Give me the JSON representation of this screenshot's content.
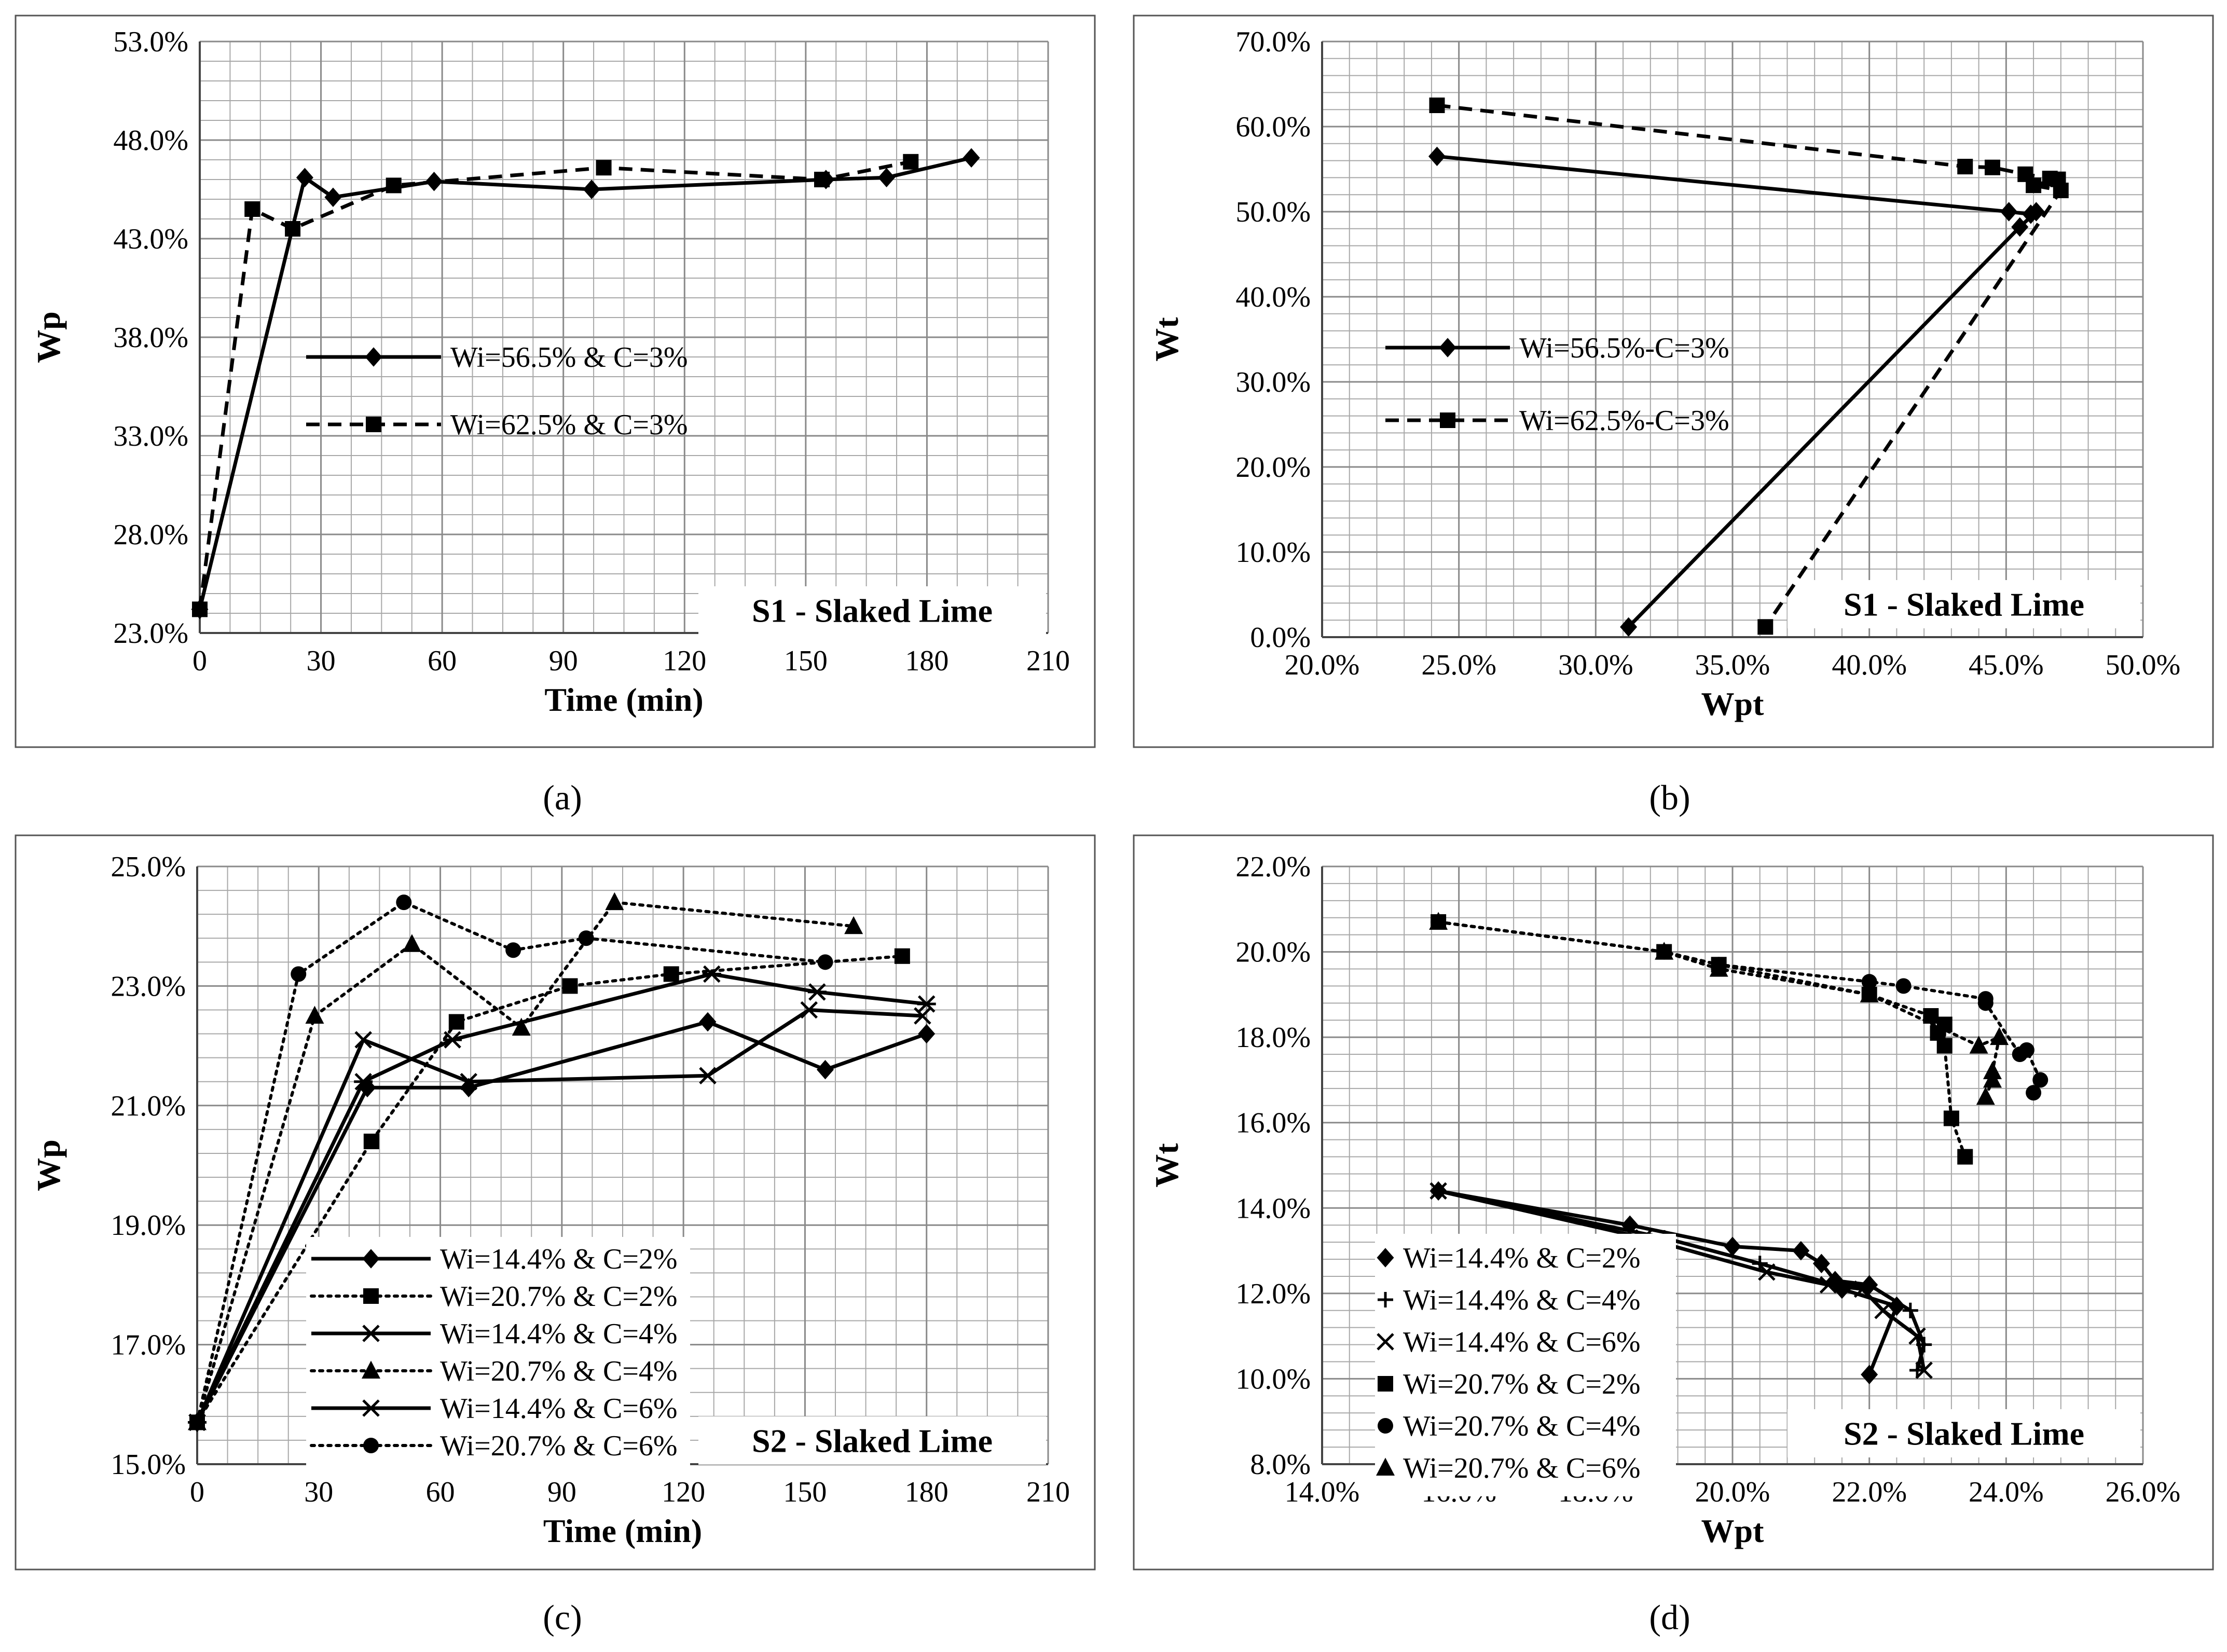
{
  "captions": [
    "(a)",
    "(b)",
    "(c)",
    "(d)"
  ],
  "chart_data": [
    {
      "id": "a",
      "type": "line",
      "title": "",
      "xlabel": "Time (min)",
      "ylabel": "Wp",
      "xlim": [
        0,
        210
      ],
      "ylim": [
        0.23,
        0.53
      ],
      "xticks": [
        0,
        30,
        60,
        90,
        120,
        150,
        180,
        210
      ],
      "yticks": [
        0.23,
        0.28,
        0.33,
        0.38,
        0.43,
        0.48,
        0.53
      ],
      "xtick_labels": [
        "0",
        "30",
        "60",
        "90",
        "120",
        "150",
        "180",
        "210"
      ],
      "ytick_labels": [
        "23.0%",
        "28.0%",
        "33.0%",
        "38.0%",
        "43.0%",
        "48.0%",
        "53.0%"
      ],
      "x_minor": 7.5,
      "y_minor": 0.01,
      "grid": true,
      "legend_position": "center-left",
      "tag": "S1 - Slaked Lime",
      "series": [
        {
          "name": "Wi=56.5% & C=3%",
          "marker": "diamond",
          "style": "solid",
          "x": [
            0,
            26,
            33,
            58,
            97,
            155,
            170,
            191
          ],
          "y": [
            0.242,
            0.461,
            0.451,
            0.459,
            0.455,
            0.46,
            0.461,
            0.471
          ]
        },
        {
          "name": "Wi=62.5% & C=3%",
          "marker": "square",
          "style": "dashed",
          "x": [
            0,
            13,
            23,
            48,
            100,
            154,
            176
          ],
          "y": [
            0.242,
            0.445,
            0.435,
            0.457,
            0.466,
            0.46,
            0.469
          ]
        }
      ]
    },
    {
      "id": "b",
      "type": "line",
      "title": "",
      "xlabel": "Wpt",
      "ylabel": "Wt",
      "xlim": [
        0.2,
        0.5
      ],
      "ylim": [
        0.0,
        0.7
      ],
      "xticks": [
        0.2,
        0.25,
        0.3,
        0.35,
        0.4,
        0.45,
        0.5
      ],
      "yticks": [
        0.0,
        0.1,
        0.2,
        0.3,
        0.4,
        0.5,
        0.6,
        0.7
      ],
      "xtick_labels": [
        "20.0%",
        "25.0%",
        "30.0%",
        "35.0%",
        "40.0%",
        "45.0%",
        "50.0%"
      ],
      "ytick_labels": [
        "0.0%",
        "10.0%",
        "20.0%",
        "30.0%",
        "40.0%",
        "50.0%",
        "60.0%",
        "70.0%"
      ],
      "x_minor": 0.01,
      "y_minor": 0.02,
      "grid": true,
      "legend_position": "center-left",
      "tag": "S1 - Slaked Lime",
      "series": [
        {
          "name": "Wi=56.5%-C=3%",
          "marker": "diamond",
          "style": "solid",
          "x": [
            0.242,
            0.451,
            0.459,
            0.461,
            0.455,
            0.312
          ],
          "y": [
            0.565,
            0.5,
            0.497,
            0.5,
            0.482,
            0.012
          ]
        },
        {
          "name": "Wi=62.5%-C=3%",
          "marker": "square",
          "style": "dashed",
          "x": [
            0.242,
            0.435,
            0.445,
            0.457,
            0.466,
            0.469,
            0.46,
            0.47,
            0.362
          ],
          "y": [
            0.625,
            0.553,
            0.552,
            0.544,
            0.539,
            0.538,
            0.531,
            0.525,
            0.012
          ]
        }
      ]
    },
    {
      "id": "c",
      "type": "line",
      "title": "",
      "xlabel": "Time (min)",
      "ylabel": "Wp",
      "xlim": [
        0,
        210
      ],
      "ylim": [
        0.15,
        0.25
      ],
      "xticks": [
        0,
        30,
        60,
        90,
        120,
        150,
        180,
        210
      ],
      "yticks": [
        0.15,
        0.17,
        0.19,
        0.21,
        0.23,
        0.25
      ],
      "xtick_labels": [
        "0",
        "30",
        "60",
        "90",
        "120",
        "150",
        "180",
        "210"
      ],
      "ytick_labels": [
        "15.0%",
        "17.0%",
        "19.0%",
        "21.0%",
        "23.0%",
        "25.0%"
      ],
      "x_minor": 7.5,
      "y_minor": 0.004,
      "grid": true,
      "legend_position": "bottom-left",
      "tag": "S2 - Slaked Lime",
      "series": [
        {
          "name": "Wi=14.4% & C=2%",
          "marker": "diamond",
          "style": "solid",
          "x": [
            0,
            42,
            67,
            126,
            155,
            180
          ],
          "y": [
            0.157,
            0.213,
            0.213,
            0.224,
            0.216,
            0.222
          ]
        },
        {
          "name": "Wi=20.7% & C=2%",
          "marker": "square",
          "style": "dotted",
          "x": [
            0,
            43,
            64,
            92,
            117,
            174
          ],
          "y": [
            0.157,
            0.204,
            0.224,
            0.23,
            0.232,
            0.235
          ]
        },
        {
          "name": "Wi=14.4% & C=4%",
          "marker": "x",
          "style": "solid",
          "x": [
            0,
            41,
            67,
            126,
            151,
            179
          ],
          "y": [
            0.157,
            0.221,
            0.214,
            0.215,
            0.226,
            0.225
          ]
        },
        {
          "name": "Wi=20.7% & C=4%",
          "marker": "triangle",
          "style": "dotted",
          "x": [
            0,
            29,
            53,
            80,
            103,
            162
          ],
          "y": [
            0.157,
            0.225,
            0.237,
            0.223,
            0.244,
            0.24
          ]
        },
        {
          "name": "Wi=14.4% & C=6%",
          "marker": "star",
          "style": "solid",
          "x": [
            0,
            41,
            63,
            127,
            153,
            180
          ],
          "y": [
            0.157,
            0.214,
            0.221,
            0.232,
            0.229,
            0.227
          ]
        },
        {
          "name": "Wi=20.7% & C=6%",
          "marker": "circle",
          "style": "dotted",
          "x": [
            0,
            25,
            51,
            78,
            96,
            155
          ],
          "y": [
            0.157,
            0.232,
            0.244,
            0.236,
            0.238,
            0.234
          ]
        }
      ]
    },
    {
      "id": "d",
      "type": "line",
      "title": "",
      "xlabel": "Wpt",
      "ylabel": "Wt",
      "xlim": [
        0.14,
        0.26
      ],
      "ylim": [
        0.08,
        0.22
      ],
      "xticks": [
        0.14,
        0.16,
        0.18,
        0.2,
        0.22,
        0.24,
        0.26
      ],
      "yticks": [
        0.08,
        0.1,
        0.12,
        0.14,
        0.16,
        0.18,
        0.2,
        0.22
      ],
      "xtick_labels": [
        "14.0%",
        "16.0%",
        "18.0%",
        "20.0%",
        "22.0%",
        "24.0%",
        "26.0%"
      ],
      "ytick_labels": [
        "8.0%",
        "10.0%",
        "12.0%",
        "14.0%",
        "16.0%",
        "18.0%",
        "20.0%",
        "22.0%"
      ],
      "x_minor": 0.004,
      "y_minor": 0.004,
      "grid": true,
      "legend_position": "bottom-left",
      "tag": "S2 - Slaked Lime",
      "series": [
        {
          "name": "Wi=14.4% & C=2%",
          "marker": "diamond",
          "style": "solid",
          "x": [
            0.157,
            0.185,
            0.2,
            0.21,
            0.213,
            0.215,
            0.22,
            0.216,
            0.224,
            0.22
          ],
          "y": [
            0.144,
            0.136,
            0.131,
            0.13,
            0.127,
            0.123,
            0.122,
            0.121,
            0.117,
            0.101
          ]
        },
        {
          "name": "Wi=14.4% & C=4%",
          "marker": "plus",
          "style": "solid",
          "x": [
            0.157,
            0.19,
            0.204,
            0.215,
            0.22,
            0.226,
            0.228,
            0.227
          ],
          "y": [
            0.144,
            0.133,
            0.127,
            0.122,
            0.122,
            0.116,
            0.108,
            0.102
          ]
        },
        {
          "name": "Wi=14.4% & C=6%",
          "marker": "x",
          "style": "solid",
          "x": [
            0.157,
            0.187,
            0.205,
            0.214,
            0.219,
            0.222,
            0.227,
            0.228
          ],
          "y": [
            0.144,
            0.133,
            0.125,
            0.122,
            0.121,
            0.116,
            0.11,
            0.102
          ]
        },
        {
          "name": "Wi=20.7% & C=2%",
          "marker": "square",
          "style": "dotted",
          "x": [
            0.157,
            0.19,
            0.198,
            0.22,
            0.229,
            0.23,
            0.231,
            0.231,
            0.232,
            0.234
          ],
          "y": [
            0.207,
            0.2,
            0.197,
            0.19,
            0.185,
            0.181,
            0.183,
            0.178,
            0.161,
            0.152
          ]
        },
        {
          "name": "Wi=20.7% & C=4%",
          "marker": "circle",
          "style": "dotted",
          "x": [
            0.157,
            0.19,
            0.198,
            0.22,
            0.225,
            0.237,
            0.237,
            0.242,
            0.243,
            0.245,
            0.244
          ],
          "y": [
            0.207,
            0.2,
            0.197,
            0.193,
            0.192,
            0.189,
            0.188,
            0.176,
            0.177,
            0.17,
            0.167
          ]
        },
        {
          "name": "Wi=20.7% & C=6%",
          "marker": "triangle",
          "style": "dotted",
          "x": [
            0.157,
            0.19,
            0.198,
            0.22,
            0.236,
            0.239,
            0.238,
            0.238,
            0.237
          ],
          "y": [
            0.207,
            0.2,
            0.196,
            0.19,
            0.178,
            0.18,
            0.172,
            0.17,
            0.166
          ]
        }
      ]
    }
  ]
}
